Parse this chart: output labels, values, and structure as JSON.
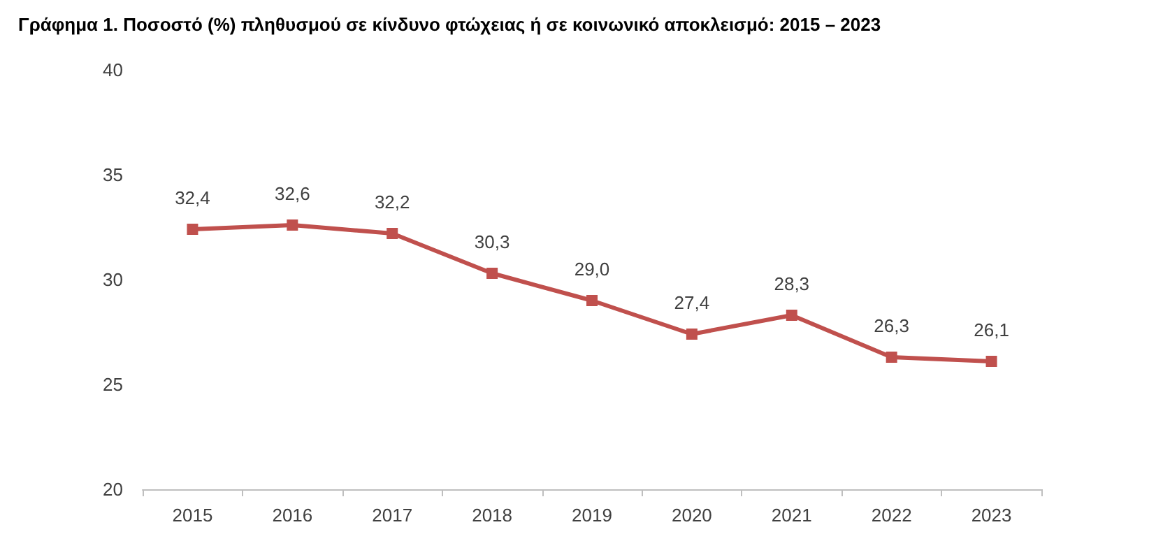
{
  "chart_data": {
    "type": "line",
    "title": "Γράφημα 1. Ποσοστό (%) πληθυσμού σε κίνδυνο φτώχειας ή σε κοινωνικό αποκλεισμό: 2015 – 2023",
    "categories": [
      "2015",
      "2016",
      "2017",
      "2018",
      "2019",
      "2020",
      "2021",
      "2022",
      "2023"
    ],
    "series": [
      {
        "color": "#c0504d",
        "values": [
          32.4,
          32.6,
          32.2,
          30.3,
          29.0,
          27.4,
          28.3,
          26.3,
          26.1
        ],
        "value_labels": [
          "32,4",
          "32,6",
          "32,2",
          "30,3",
          "29,0",
          "27,4",
          "28,3",
          "26,3",
          "26,1"
        ]
      }
    ],
    "ylim": [
      20,
      40
    ],
    "yticks": [
      20,
      25,
      30,
      35,
      40
    ],
    "grid": false,
    "marker": "square",
    "line_style": "solid"
  }
}
